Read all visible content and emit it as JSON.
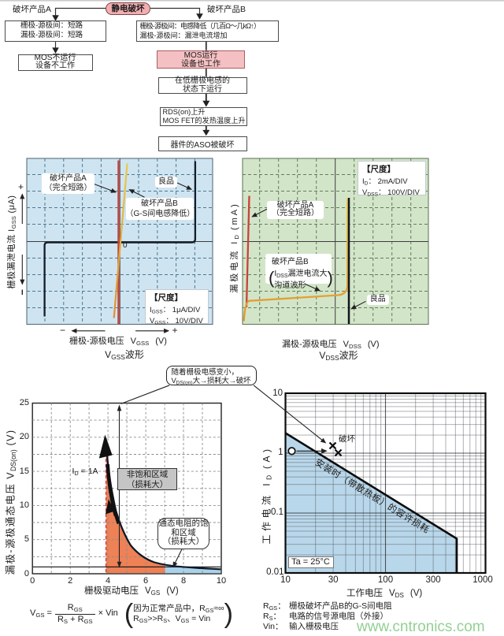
{
  "page": {
    "watermark": "www.cntronics.com",
    "accent_pink": "#f2aeb2",
    "scope_blue_bg": "#cfe4f1",
    "scope_green_bg": "#d3e5c9",
    "trace_red": "#c8423b",
    "trace_yellow": "#e3b83c",
    "fill_orange": "#ee8156",
    "fill_blue": "#a9d2ea",
    "watermark_green": "#93d094"
  },
  "flowchart": {
    "root": "静电破坏",
    "branch_a_label": "破坏产品A",
    "branch_b_label": "破坏产品B",
    "box_a1_line1": "栅极-源极间：短路",
    "box_a1_line2": "漏极-源极间：短路",
    "box_a2_line1": "MOS不运行",
    "box_a2_line2": "设备不工作",
    "box_b1_line1": "栅极-源极间：电感降低（几百Ω～几kΩ↑）",
    "box_b1_line2": "漏极-源极间：漏泄电流增加",
    "box_b2_line1": "MOS运行",
    "box_b2_line2": "设备也工作",
    "box_b3_line1": "在低栅极电感的",
    "box_b3_line2": "状态下运行",
    "box_b4_line1": "RDS(on)上升",
    "box_b4_line2": "MOS FET的发热温度上升",
    "box_b5": "器件的ASO被破坏"
  },
  "gss_chart": {
    "y_axis": "栅极漏泄电流 I_{GSS} (μA)",
    "y_plus": "+",
    "zero": "0",
    "label_a_line1": "破坏产品A",
    "label_a_line2": "（完全短路）",
    "label_good": "良品",
    "label_b_line1": "破坏产品B",
    "label_b_line2": "（G-S间电感降低）",
    "scale_title": "【尺度】",
    "scale_line1": "I_{GSS}： 1μA/DIV",
    "scale_line2": "V_{GSS}： 10V/DIV",
    "x_minus": "−",
    "x_plus": "+",
    "x_axis_zh": "栅极-源极电压",
    "x_axis_sym": "V_{GSS}",
    "x_axis_unit": "(V)",
    "caption": "V_{GSS}波形"
  },
  "dss_chart": {
    "y_axis": "漏极电流  I_{D}  (mA)",
    "label_a_line1": "破坏产品A",
    "label_a_line2": "（完全短路）",
    "label_b_line1": "破坏产品B",
    "label_b_line2": "I_{DSS}漏泄电流大",
    "label_b_line3": "沟道波形",
    "label_b_paren_open": "(",
    "label_b_paren_close": ")",
    "label_good": "良品",
    "scale_title": "【尺度】",
    "scale_line1": "I_{D}： 2mA/DIV",
    "scale_line2": "V_{DSS}： 100V/DIV",
    "x_axis_zh": "漏极-源极电压",
    "x_axis_sym": "V_{DSS}",
    "x_axis_unit": "(V)",
    "caption": "V_{DSS}波形"
  },
  "vgs_chart": {
    "y_axis": "漏极-源极通态电压  V_{DS(on)}  (V)",
    "x_axis_zh": "栅极驱动电压",
    "x_axis_sym": "V_{GS}",
    "x_axis_unit": "(V)",
    "y_ticks": [
      "25",
      "20",
      "15",
      "10",
      "5",
      "0"
    ],
    "x_ticks": [
      "0",
      "2",
      "4",
      "6",
      "8",
      "10"
    ],
    "id_label": "I_{D} = 1A",
    "region1_line1": "非饱和区域",
    "region1_line2": "（损耗大）",
    "region2_line1": "通态电阻的饱",
    "region2_line2": "和区域",
    "region2_line3": "（损耗大）"
  },
  "note_box": {
    "line1": "随着栅极电感变小，",
    "line2": "V_{DS(on)}大→损耗大→破坏"
  },
  "soa_chart": {
    "y_axis": "工作电流  I_{D}  (A)",
    "x_axis_zh": "工作电压",
    "x_axis_sym": "V_{DS}",
    "x_axis_unit": "(V)",
    "y_ticks": [
      "10",
      "1",
      "0.1",
      "0.01"
    ],
    "x_ticks": [
      "10",
      "30",
      "100",
      "300",
      "1000"
    ],
    "damage_label": "破坏",
    "diag_label": "安装时（带散热板）的容许损耗",
    "ta_label": "Ta = 25°C"
  },
  "formula": {
    "lhs": "V_{GS} =",
    "num": "R_{GS}",
    "den": "R_{S} + R_{GS}",
    "times": "× Vin",
    "paren_open": "(",
    "paren_close": ")",
    "note_line1": "因为正常产品中，R_{GS}≈∞",
    "note_line2": "R_{GS}>>R_{S}、V_{GS} = Vin"
  },
  "legend": {
    "items": [
      {
        "term": "R_{GS}：",
        "desc": "栅极破坏产品B的G-S间电阻"
      },
      {
        "term": "R_{S}：",
        "desc": "电路的信号源电阻（外接）"
      },
      {
        "term": "Vin：",
        "desc": "输入栅极电压"
      }
    ]
  },
  "chart_data": [
    {
      "type": "line",
      "title": "V_GSS波形 (gate-source leakage, curve tracer)",
      "xlabel": "栅极-源极电压 V_GSS (V)",
      "ylabel": "栅极漏泄电流 I_GSS (μA)",
      "x_scale": "10V/DIV",
      "y_scale": "1μA/DIV",
      "grid": "10x10 oscilloscope divisions",
      "series": [
        {
          "name": "良品",
          "shape": "flat at 0 with steep breakdown at about -4 DIV and +4 DIV"
        },
        {
          "name": "破坏产品A（完全短路）",
          "shape": "vertical line through 0 (complete short)"
        },
        {
          "name": "破坏产品B（G-S间电感降低）",
          "shape": "near-vertical line slightly tilted through 0"
        }
      ]
    },
    {
      "type": "line",
      "title": "V_DSS波形 (drain-source, curve tracer)",
      "xlabel": "漏极-源极电压 V_DSS (V)",
      "ylabel": "漏极电流 I_D (mA)",
      "x_scale": "100V/DIV",
      "y_scale": "2mA/DIV",
      "grid": "10x10 oscilloscope divisions",
      "series": [
        {
          "name": "破坏产品A（完全短路）",
          "shape": "vertical line at 0 DIV"
        },
        {
          "name": "破坏产品B（IDSS漏泄电流大 沟道波形）",
          "shape": "rising leakage line then breakdown at about +5.6 DIV"
        },
        {
          "name": "良品",
          "shape": "vertical breakdown line at about +5.7 DIV"
        }
      ]
    },
    {
      "type": "line",
      "title": "V_DS(on) vs V_GS at I_D = 1A",
      "xlabel": "栅极驱动电压 V_GS (V)",
      "ylabel": "漏极-源极通态电压 V_DS(on) (V)",
      "xlim": [
        0,
        10
      ],
      "ylim": [
        0,
        25
      ],
      "x": [
        3.95,
        4.0,
        4.1,
        4.3,
        4.7,
        5.4,
        6.5,
        8.0,
        10.0
      ],
      "y": [
        21.0,
        17.0,
        15.5,
        10.9,
        6.7,
        3.7,
        1.9,
        1.2,
        0.7
      ],
      "regions": [
        {
          "name": "非饱和区域（损耗大）",
          "x_range": [
            4.0,
            7.0
          ],
          "fill": "#ee8156"
        },
        {
          "name": "通态电阻的饱和区域（损耗大）",
          "x_range": [
            7.0,
            10.0
          ],
          "fill": "#a9d2ea"
        }
      ]
    },
    {
      "type": "area",
      "title": "安全工作区 (SOA), log-log",
      "xlabel": "工作电压 V_DS (V)",
      "ylabel": "工作电流 I_D (A)",
      "xlim": [
        10,
        1000
      ],
      "ylim": [
        0.01,
        10
      ],
      "ta": "Ta = 25°C",
      "boundary_points_v_i": [
        [
          10,
          2.2
        ],
        [
          520,
          0.037
        ],
        [
          520,
          0.01
        ]
      ],
      "markers": [
        {
          "name": "工作点",
          "v": 11,
          "i": 1,
          "marker": "circle"
        },
        {
          "name": "破坏",
          "v": 30,
          "i": 1.35,
          "marker": "x"
        },
        {
          "name": "破坏",
          "v": 34,
          "i": 1.0,
          "marker": "x"
        }
      ]
    }
  ]
}
